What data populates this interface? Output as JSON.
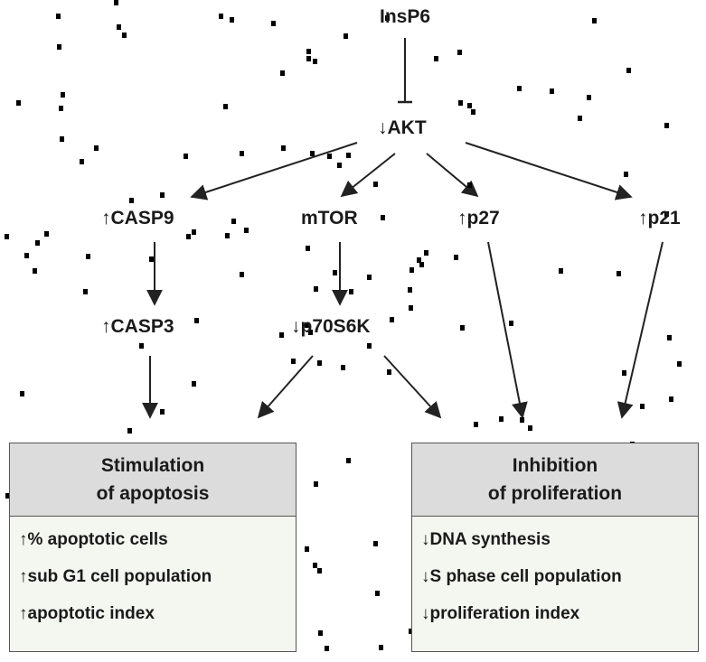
{
  "nodes": {
    "insp6": "InsP6",
    "akt": "↓AKT",
    "casp9": "↑CASP9",
    "mtor": "mTOR",
    "p27": "↑p27",
    "p21": "↑p21",
    "casp3": "↑CASP3",
    "p70s6k": "↓p70S6K"
  },
  "apoptosis_box": {
    "title_line1": "Stimulation",
    "title_line2": "of apoptosis",
    "items": [
      "↑% apoptotic cells",
      "↑sub G1 cell population",
      "↑apoptotic index"
    ]
  },
  "proliferation_box": {
    "title_line1": "Inhibition",
    "title_line2": "of proliferation",
    "items": [
      "↓DNA synthesis",
      "↓S phase cell population",
      "↓proliferation index"
    ]
  }
}
